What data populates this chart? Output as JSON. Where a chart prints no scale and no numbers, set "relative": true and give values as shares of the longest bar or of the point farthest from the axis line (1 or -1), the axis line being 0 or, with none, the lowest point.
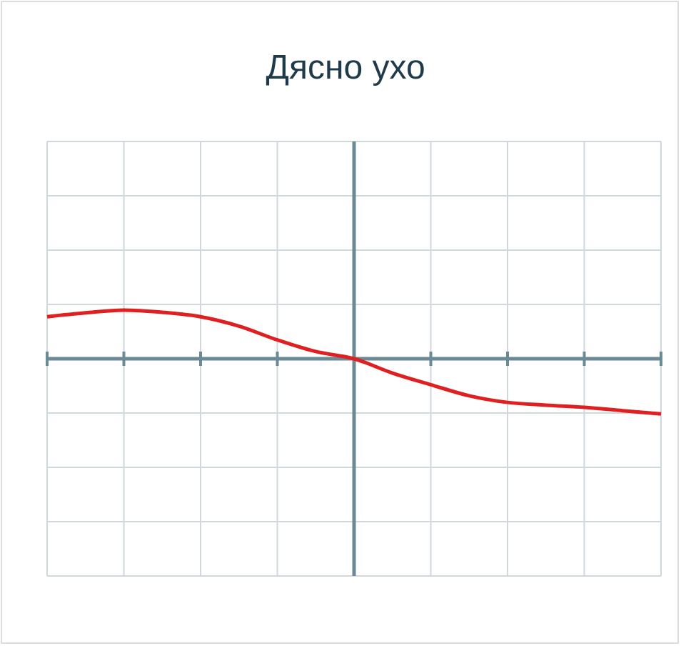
{
  "chart_data": {
    "type": "line",
    "title": "Дясно ухо",
    "relative": true,
    "grid": true,
    "ref_lines": [
      {
        "axis": "y",
        "value": 0,
        "color": "#6a8a96"
      }
    ],
    "marker": "none",
    "line_style": "solid",
    "categories": [
      null,
      null,
      null,
      null,
      null,
      null,
      null,
      null,
      null,
      null,
      null,
      null,
      null,
      null,
      null,
      null,
      null
    ],
    "series": [
      {
        "color": "#e02020",
        "values": [
          0.76,
          0.83,
          0.88,
          0.84,
          0.76,
          0.59,
          0.34,
          0.13,
          0,
          -0.26,
          -0.47,
          -0.67,
          -0.79,
          -0.84,
          -0.88,
          -0.94,
          -1
        ]
      }
    ]
  }
}
